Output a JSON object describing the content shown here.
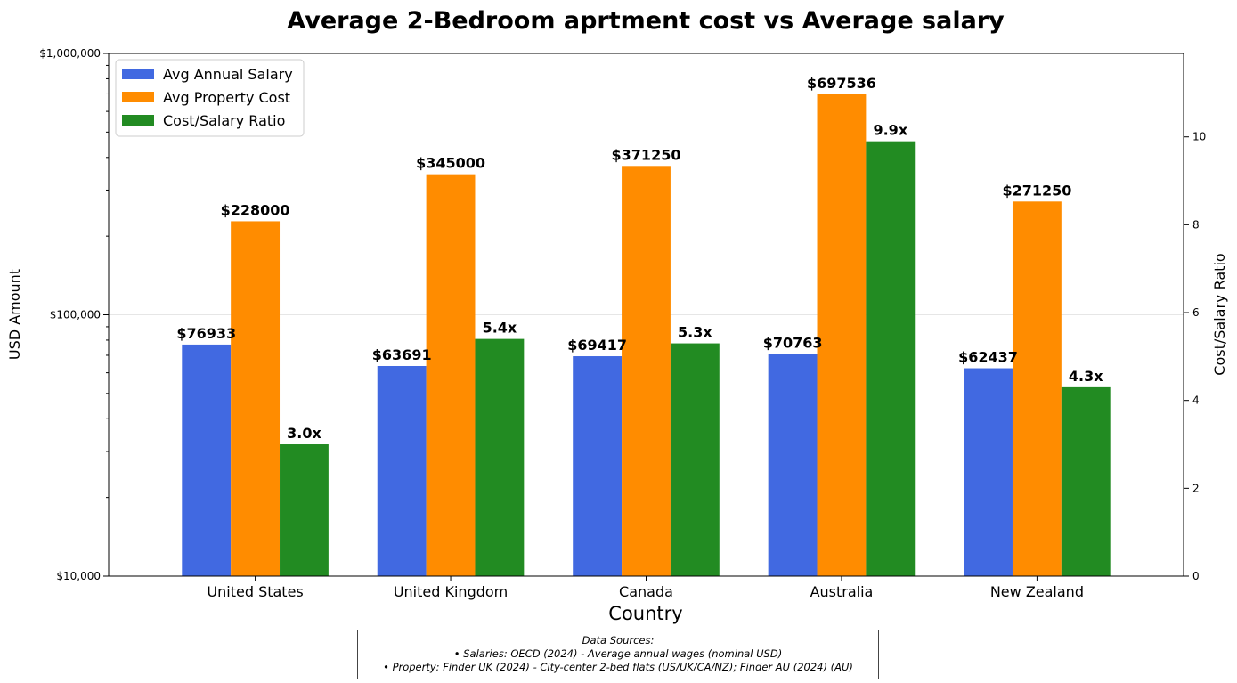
{
  "chart_data": {
    "type": "bar",
    "title": "Average 2-Bedroom aprtment cost vs Average salary",
    "xlabel": "Country",
    "ylabel": "USD Amount",
    "y2label": "Cost/Salary Ratio",
    "categories": [
      "United States",
      "United Kingdom",
      "Canada",
      "Australia",
      "New Zealand"
    ],
    "yscale": "log",
    "ylim": [
      10000,
      1000000
    ],
    "y_ticks": [
      "$10,000",
      "$100,000",
      "$1,000,000"
    ],
    "y2lim": [
      0,
      11.9
    ],
    "y2_ticks": [
      "0",
      "2",
      "4",
      "6",
      "8",
      "10"
    ],
    "series": [
      {
        "name": "Avg Annual Salary",
        "axis": "left",
        "color": "#4169e1",
        "values": [
          76933,
          63691,
          69417,
          70763,
          62437
        ],
        "labels": [
          "$76933",
          "$63691",
          "$69417",
          "$70763",
          "$62437"
        ]
      },
      {
        "name": "Avg Property Cost",
        "axis": "left",
        "color": "#ff8c00",
        "values": [
          228000,
          345000,
          371250,
          697536,
          271250
        ],
        "labels": [
          "$228000",
          "$345000",
          "$371250",
          "$697536",
          "$271250"
        ]
      },
      {
        "name": "Cost/Salary Ratio",
        "axis": "right",
        "color": "#228b22",
        "values": [
          3.0,
          5.4,
          5.3,
          9.9,
          4.3
        ],
        "labels": [
          "3.0x",
          "5.4x",
          "5.3x",
          "9.9x",
          "4.3x"
        ]
      }
    ],
    "legend_position": "top-left",
    "grid": "horizontal at $100,000"
  },
  "sources": {
    "heading": "Data Sources:",
    "line1": "• Salaries: OECD (2024) - Average annual wages (nominal USD)",
    "line2": "• Property: Finder UK (2024) - City-center 2-bed flats (US/UK/CA/NZ); Finder AU (2024) (AU)"
  }
}
